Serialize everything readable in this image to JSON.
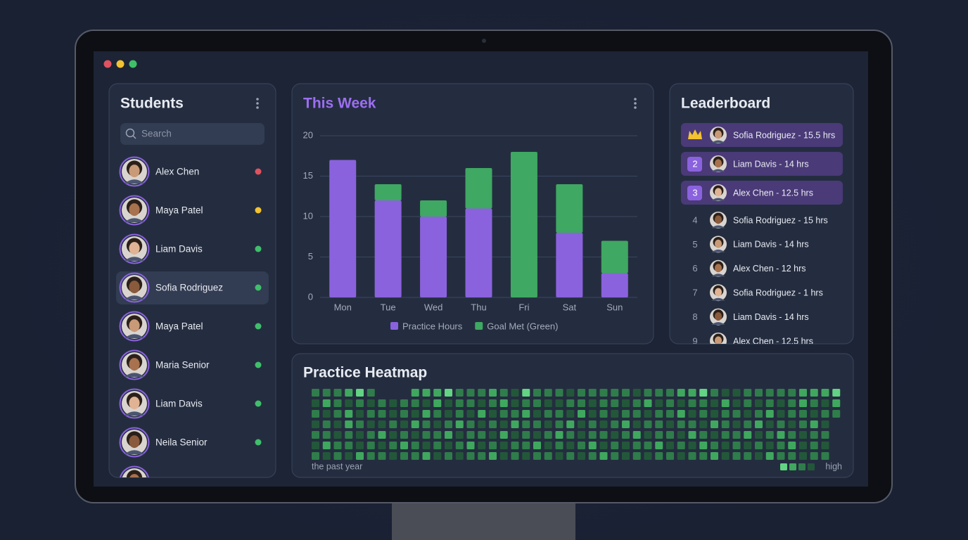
{
  "students": {
    "title": "Students",
    "search_placeholder": "Search",
    "items": [
      {
        "name": "Alex Chen",
        "status_color": "#e0525f"
      },
      {
        "name": "Maya Patel",
        "status_color": "#f2c230"
      },
      {
        "name": "Liam Davis",
        "status_color": "#3fbf6a"
      },
      {
        "name": "Sofia Rodriguez",
        "status_color": "#3fbf6a",
        "selected": true
      },
      {
        "name": "Maya Patel",
        "status_color": "#3fbf6a"
      },
      {
        "name": "Maria Senior",
        "status_color": "#3fbf6a"
      },
      {
        "name": "Liam Davis",
        "status_color": "#3fbf6a"
      },
      {
        "name": "Neila Senior",
        "status_color": "#3fbf6a"
      }
    ]
  },
  "chart_data": {
    "type": "bar",
    "stacked": true,
    "title": "This Week",
    "categories": [
      "Mon",
      "Tue",
      "Wed",
      "Thu",
      "Fri",
      "Sat",
      "Sun"
    ],
    "series": [
      {
        "name": "Practice Hours",
        "color": "#8a62dd",
        "values": [
          17,
          12,
          10,
          11,
          0,
          8,
          3
        ]
      },
      {
        "name": "Goal Met (Green)",
        "color": "#3fa862",
        "values": [
          0,
          2,
          2,
          5,
          18,
          6,
          4
        ]
      }
    ],
    "ylim": [
      0,
      20
    ],
    "yticks": [
      0,
      5,
      10,
      15,
      20
    ],
    "grid": true,
    "legend": "bottom"
  },
  "leaderboard": {
    "title": "Leaderboard",
    "entries": [
      {
        "text": "Sofia Rodriguez - 15.5 hrs"
      },
      {
        "rank": 2,
        "text": "Liam Davis - 14 hrs"
      },
      {
        "rank": 3,
        "text": "Alex Chen - 12.5 hrs"
      },
      {
        "rank": 4,
        "text": "Sofia Rodriguez - 15 hrs"
      },
      {
        "rank": 5,
        "text": "Liam Davis - 14 hrs"
      },
      {
        "rank": 6,
        "text": "Alex Chen - 12 hrs"
      },
      {
        "rank": 7,
        "text": "Sofia Rodriguez - 1 hrs"
      },
      {
        "rank": 8,
        "text": "Liam Davis - 14 hrs"
      },
      {
        "rank": 9,
        "text": "Alex Chen - 12.5 hrs"
      }
    ]
  },
  "heatmap": {
    "title": "Practice Heatmap",
    "caption_left": "the past year",
    "caption_right": "high",
    "colors": [
      "#23573a",
      "#2f7d4a",
      "#3fa85e",
      "#62d483"
    ],
    "levels": [
      [
        2,
        2,
        2,
        3,
        4,
        2,
        0,
        0,
        0,
        3,
        3,
        3,
        4,
        2,
        2,
        2,
        3,
        2,
        1,
        4,
        2,
        2,
        2,
        1,
        2,
        2,
        2,
        2,
        2,
        1,
        2,
        2,
        2,
        3,
        3,
        4,
        2,
        1,
        1,
        2,
        2,
        2,
        2,
        2,
        3,
        3,
        3,
        4
      ],
      [
        1,
        3,
        2,
        1,
        2,
        1,
        2,
        1,
        2,
        2,
        1,
        3,
        1,
        2,
        2,
        1,
        2,
        3,
        1,
        2,
        2,
        1,
        1,
        2,
        2,
        1,
        2,
        2,
        1,
        2,
        3,
        1,
        2,
        1,
        2,
        2,
        1,
        3,
        1,
        2,
        1,
        2,
        1,
        2,
        3,
        2,
        1,
        3
      ],
      [
        2,
        1,
        2,
        3,
        1,
        2,
        2,
        1,
        2,
        1,
        3,
        2,
        1,
        2,
        1,
        3,
        1,
        2,
        2,
        3,
        1,
        2,
        2,
        1,
        3,
        1,
        2,
        1,
        2,
        2,
        1,
        2,
        2,
        3,
        1,
        2,
        1,
        2,
        2,
        1,
        2,
        3,
        1,
        2,
        2,
        1,
        2,
        2
      ],
      [
        1,
        2,
        1,
        3,
        2,
        1,
        1,
        2,
        1,
        3,
        2,
        1,
        2,
        3,
        2,
        1,
        2,
        1,
        3,
        2,
        2,
        1,
        2,
        3,
        1,
        2,
        1,
        2,
        3,
        1,
        2,
        2,
        1,
        2,
        2,
        1,
        3,
        2,
        1,
        2,
        3,
        1,
        2,
        1,
        2,
        3,
        1,
        0
      ],
      [
        2,
        2,
        1,
        2,
        1,
        2,
        3,
        1,
        2,
        1,
        2,
        2,
        3,
        1,
        2,
        2,
        1,
        3,
        1,
        2,
        1,
        2,
        3,
        2,
        1,
        2,
        2,
        1,
        2,
        3,
        1,
        2,
        2,
        1,
        3,
        2,
        1,
        2,
        2,
        3,
        1,
        2,
        3,
        2,
        1,
        2,
        2,
        0
      ],
      [
        1,
        3,
        2,
        2,
        1,
        2,
        1,
        2,
        3,
        2,
        1,
        2,
        1,
        2,
        3,
        1,
        2,
        1,
        2,
        2,
        3,
        1,
        2,
        1,
        2,
        3,
        1,
        2,
        1,
        2,
        2,
        3,
        1,
        2,
        1,
        3,
        2,
        1,
        2,
        1,
        2,
        1,
        2,
        3,
        1,
        2,
        1,
        0
      ],
      [
        2,
        1,
        2,
        1,
        3,
        2,
        2,
        1,
        2,
        2,
        3,
        1,
        2,
        1,
        2,
        2,
        3,
        1,
        2,
        1,
        2,
        2,
        1,
        2,
        1,
        2,
        3,
        2,
        1,
        2,
        1,
        2,
        2,
        1,
        2,
        2,
        3,
        1,
        2,
        2,
        1,
        3,
        2,
        2,
        1,
        2,
        2,
        0
      ]
    ]
  }
}
